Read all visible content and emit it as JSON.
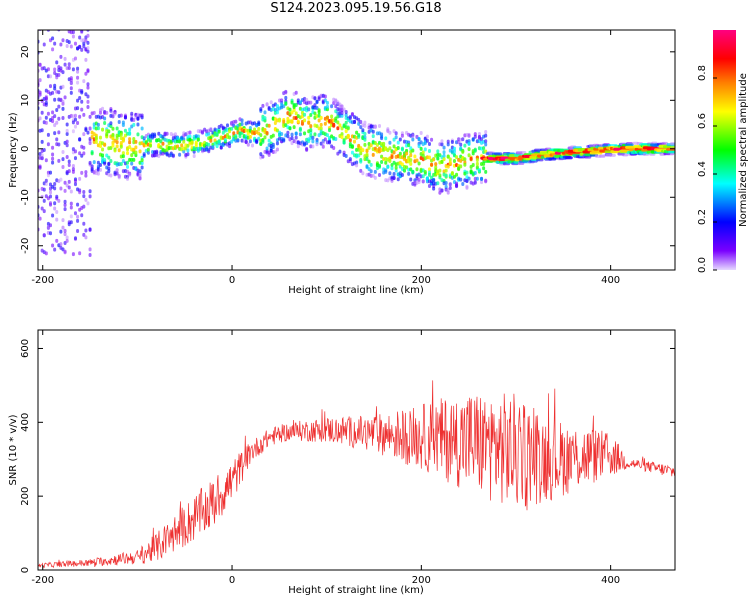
{
  "title": "S124.2023.095.19.56.G18",
  "spectrogram": {
    "type": "heatmap",
    "xlabel": "Height of straight line (km)",
    "ylabel": "Frequency (Hz)",
    "xlim": [
      -205,
      468
    ],
    "ylim": [
      -25,
      24.5
    ],
    "xticks": [
      "-200",
      "0",
      "200",
      "400"
    ],
    "xtick_values": [
      -200,
      0,
      200,
      400
    ],
    "yticks": [
      "-20",
      "-10",
      "0",
      "10",
      "20"
    ],
    "ytick_values": [
      -20,
      -10,
      0,
      10,
      20
    ],
    "colorbar": {
      "label": "Normalized spectral amplitude",
      "ticks": [
        "0.0",
        "0.2",
        "0.4",
        "0.6",
        "0.8"
      ],
      "tick_values": [
        0.0,
        0.2,
        0.4,
        0.6,
        0.8
      ],
      "range": [
        0,
        1
      ],
      "colormap": [
        "#e6d9ff",
        "#7a00ff",
        "#0000ff",
        "#00ffff",
        "#00ff00",
        "#ffff00",
        "#ff7f00",
        "#ff0000",
        "#ff0080"
      ]
    },
    "ridge": {
      "height_km": [
        -150,
        -120,
        -100,
        -80,
        -60,
        -40,
        -20,
        0,
        10,
        20,
        40,
        60,
        80,
        100,
        120,
        140,
        160,
        180,
        200,
        220,
        240,
        260,
        280,
        300,
        340,
        380,
        420,
        468
      ],
      "frequency_hz": [
        2,
        1,
        0.5,
        1,
        0.5,
        1,
        2,
        3,
        4,
        3,
        4,
        7,
        5,
        6,
        3,
        0,
        -1,
        -2,
        -2,
        -4,
        -3,
        -2,
        -2,
        -2,
        -1,
        -0.5,
        0,
        0
      ]
    }
  },
  "snr": {
    "type": "line",
    "xlabel": "Height of straight line (km)",
    "ylabel": "SNR (10 * v/v)",
    "xlim": [
      -205,
      468
    ],
    "ylim": [
      0,
      650
    ],
    "xticks": [
      "-200",
      "0",
      "200",
      "400"
    ],
    "xtick_values": [
      -200,
      0,
      200,
      400
    ],
    "yticks": [
      "0",
      "200",
      "400",
      "600"
    ],
    "ytick_values": [
      0,
      200,
      400,
      600
    ],
    "color": "#ee3030",
    "envelope": {
      "height_km": [
        -205,
        -150,
        -100,
        -80,
        -50,
        -20,
        0,
        20,
        40,
        60,
        100,
        150,
        200,
        250,
        300,
        340,
        380,
        400,
        420,
        440,
        468
      ],
      "mean": [
        12,
        20,
        35,
        60,
        120,
        180,
        240,
        320,
        360,
        375,
        380,
        370,
        360,
        350,
        320,
        300,
        310,
        310,
        290,
        280,
        265
      ],
      "spread": [
        6,
        10,
        20,
        40,
        60,
        70,
        60,
        30,
        25,
        25,
        35,
        50,
        90,
        140,
        160,
        110,
        80,
        60,
        15,
        15,
        20
      ]
    }
  }
}
